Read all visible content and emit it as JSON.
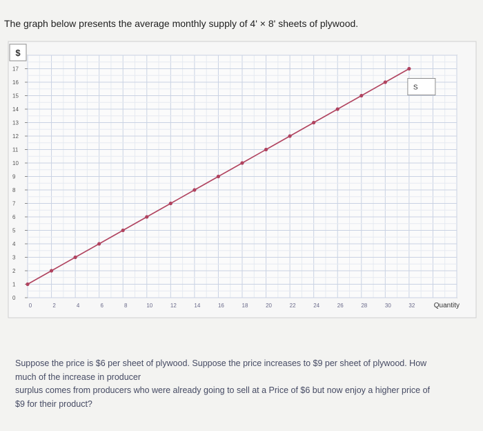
{
  "intro_text": "The graph below presents the average monthly supply of 4' × 8' sheets of plywood.",
  "chart_data": {
    "type": "line",
    "x_ticks": [
      "0",
      "2",
      "4",
      "6",
      "8",
      "10",
      "12",
      "14",
      "16",
      "18",
      "20",
      "22",
      "24",
      "26",
      "28",
      "30",
      "32"
    ],
    "y_ticks": [
      "0",
      "1",
      "2",
      "3",
      "4",
      "5",
      "6",
      "7",
      "8",
      "9",
      "10",
      "11",
      "12",
      "13",
      "14",
      "15",
      "16",
      "17"
    ],
    "xlim": [
      0,
      36
    ],
    "ylim": [
      0,
      18
    ],
    "y_axis_symbol": "$",
    "x_axis_label": "Quantity",
    "grid": true,
    "series": [
      {
        "name": "S",
        "color": "#b0435f",
        "points": [
          [
            0,
            1
          ],
          [
            2,
            2
          ],
          [
            4,
            3
          ],
          [
            6,
            4
          ],
          [
            8,
            5
          ],
          [
            10,
            6
          ],
          [
            12,
            7
          ],
          [
            14,
            8
          ],
          [
            16,
            9
          ],
          [
            18,
            10
          ],
          [
            20,
            11
          ],
          [
            22,
            12
          ],
          [
            24,
            13
          ],
          [
            26,
            14
          ],
          [
            28,
            15
          ],
          [
            30,
            16
          ],
          [
            32,
            17
          ]
        ]
      }
    ]
  },
  "question": {
    "lines": [
      "Suppose the price is $6 per sheet of plywood. Suppose the price increases to $9 per sheet of plywood. How",
      "much of the increase in producer",
      "surplus comes from producers who were already going to sell at a Price of $6 but now enjoy a higher price of",
      "$9 for their product?"
    ]
  }
}
